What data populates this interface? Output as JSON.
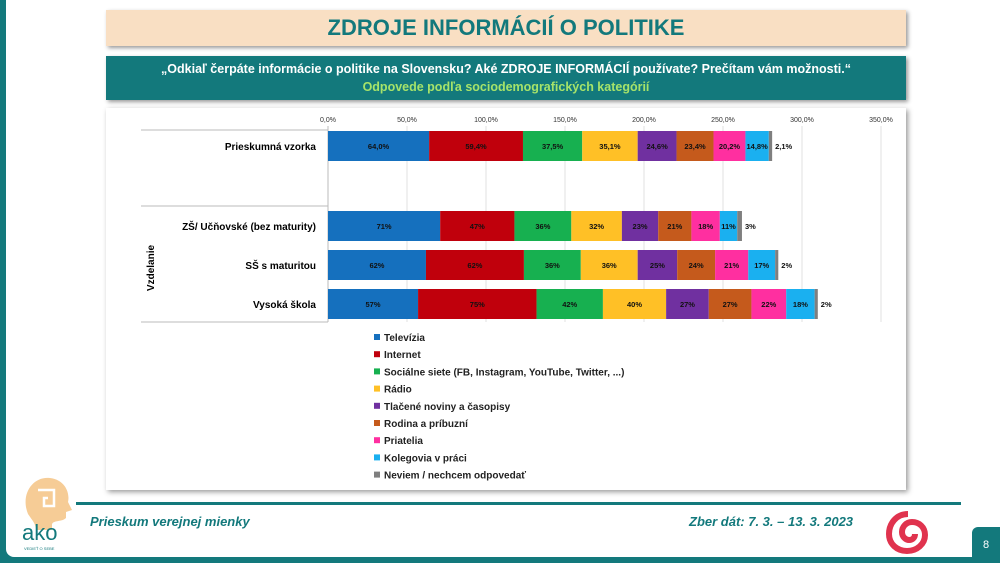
{
  "title": "ZDROJE INFORMÁCIÍ O POLITIKE",
  "question": "„Odkiaľ čerpáte informácie o politike na Slovensku? Aké ZDROJE INFORMÁCIÍ používate? Prečítam vám možnosti.“",
  "subtitle": "Odpovede podľa sociodemografických kategórií",
  "footer": {
    "left": "Prieskum verejnej mienky",
    "right": "Zber dát: 7. 3. – 13. 3. 2023",
    "page": "8",
    "logo_text": "ako",
    "logo_tagline": "VEDIEŤ O SEBE"
  },
  "chart_data": {
    "type": "bar",
    "orientation": "horizontal",
    "stacked": true,
    "xlim": [
      0,
      350
    ],
    "ticks": [
      "0,0%",
      "50,0%",
      "100,0%",
      "150,0%",
      "200,0%",
      "250,0%",
      "300,0%",
      "350,0%"
    ],
    "tick_values": [
      0,
      50,
      100,
      150,
      200,
      250,
      300,
      350
    ],
    "group_label": "Vzdelanie",
    "grid": true,
    "legend_placement": "bottom",
    "categories": [
      "Prieskumná vzorka",
      "ZŠ/ Učňovské (bez maturity)",
      "SŠ s maturitou",
      "Vysoká škola"
    ],
    "series": [
      {
        "name": "Televízia",
        "color": "#1570be",
        "values": [
          64.0,
          71,
          62,
          57
        ],
        "labels": [
          "64,0%",
          "71%",
          "62%",
          "57%"
        ]
      },
      {
        "name": "Internet",
        "color": "#c0000c",
        "values": [
          59.4,
          47,
          62,
          75
        ],
        "labels": [
          "59,4%",
          "47%",
          "62%",
          "75%"
        ]
      },
      {
        "name": "Sociálne siete (FB, Instagram, YouTube, Twitter, ...)",
        "color": "#17b050",
        "values": [
          37.5,
          36,
          36,
          42
        ],
        "labels": [
          "37,5%",
          "36%",
          "36%",
          "42%"
        ]
      },
      {
        "name": "Rádio",
        "color": "#ffc026",
        "values": [
          35.1,
          32,
          36,
          40
        ],
        "labels": [
          "35,1%",
          "32%",
          "36%",
          "40%"
        ]
      },
      {
        "name": "Tlačené noviny a časopisy",
        "color": "#7030a0",
        "values": [
          24.6,
          23,
          25,
          27
        ],
        "labels": [
          "24,6%",
          "23%",
          "25%",
          "27%"
        ]
      },
      {
        "name": "Rodina a príbuzní",
        "color": "#c55a1c",
        "values": [
          23.4,
          21,
          24,
          27
        ],
        "labels": [
          "23,4%",
          "21%",
          "24%",
          "27%"
        ]
      },
      {
        "name": "Priatelia",
        "color": "#ff2fa0",
        "values": [
          20.2,
          18,
          21,
          22
        ],
        "labels": [
          "20,2%",
          "18%",
          "21%",
          "22%"
        ]
      },
      {
        "name": "Kolegovia v práci",
        "color": "#1ab0f0",
        "values": [
          14.8,
          11,
          17,
          18
        ],
        "labels": [
          "14,8%",
          "11%",
          "17%",
          "18%"
        ]
      },
      {
        "name": "Neviem / nechcem odpovedať",
        "color": "#7f7f7f",
        "values": [
          2.1,
          3,
          2,
          2
        ],
        "labels": [
          "2,1%",
          "3%",
          "2%",
          "2%"
        ]
      }
    ]
  }
}
